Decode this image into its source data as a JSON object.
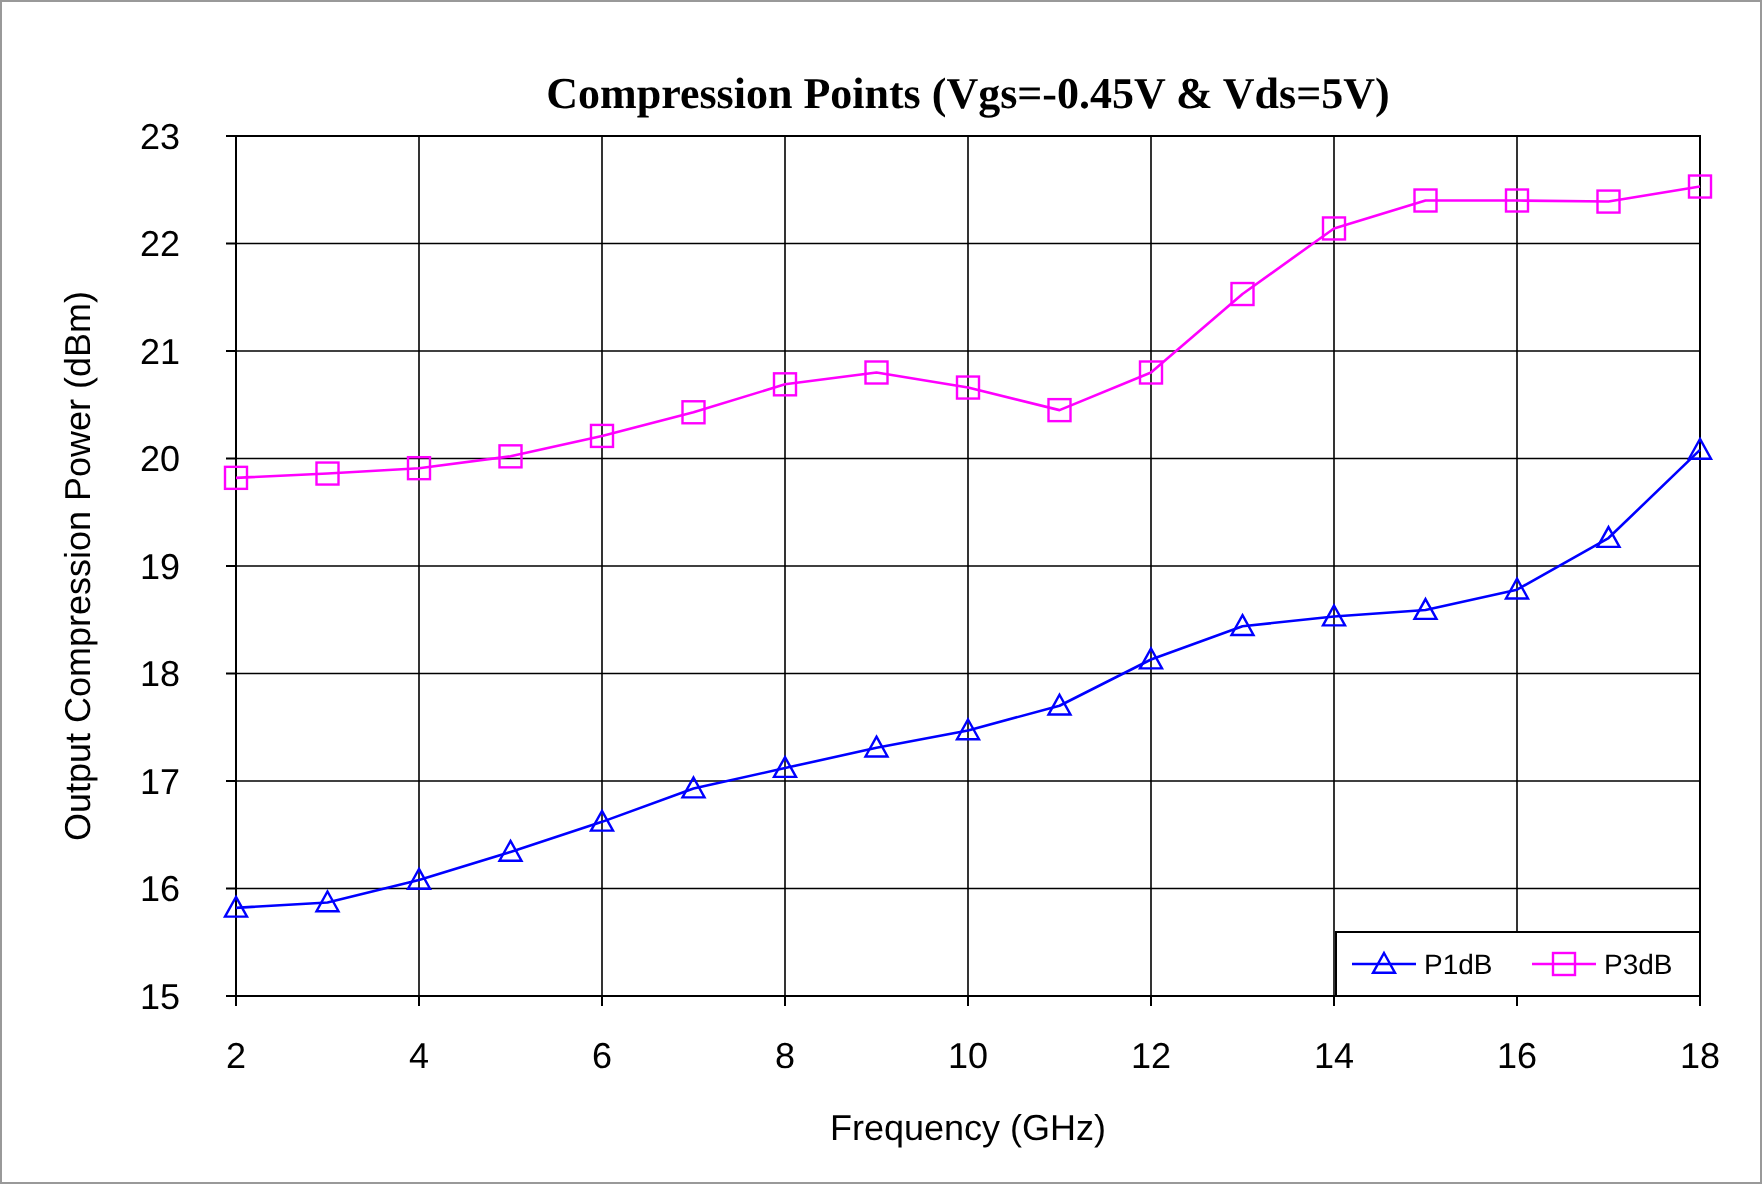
{
  "chart_data": {
    "type": "line",
    "title": "Compression Points (Vgs=-0.45V & Vds=5V)",
    "xlabel": "Frequency (GHz)",
    "ylabel": "Output Compression Power (dBm)",
    "x": [
      2,
      3,
      4,
      5,
      6,
      7,
      8,
      9,
      10,
      11,
      12,
      13,
      14,
      15,
      16,
      17,
      18
    ],
    "series": [
      {
        "name": "P1dB",
        "color": "#0000ff",
        "marker": "triangle",
        "values": [
          15.82,
          15.87,
          16.08,
          16.34,
          16.62,
          16.93,
          17.12,
          17.31,
          17.47,
          17.7,
          18.13,
          18.44,
          18.53,
          18.59,
          18.78,
          19.26,
          20.08
        ]
      },
      {
        "name": "P3dB",
        "color": "#ff00ff",
        "marker": "square",
        "values": [
          19.82,
          19.86,
          19.91,
          20.02,
          20.21,
          20.43,
          20.69,
          20.8,
          20.66,
          20.45,
          20.8,
          21.53,
          22.14,
          22.4,
          22.4,
          22.39,
          22.53
        ]
      }
    ],
    "xlim": [
      2,
      18
    ],
    "xticks": [
      2,
      4,
      6,
      8,
      10,
      12,
      14,
      16,
      18
    ],
    "ylim": [
      15,
      23
    ],
    "yticks": [
      15,
      16,
      17,
      18,
      19,
      20,
      21,
      22,
      23
    ],
    "grid": true,
    "legend": "bottom right",
    "line_style": "solid"
  }
}
